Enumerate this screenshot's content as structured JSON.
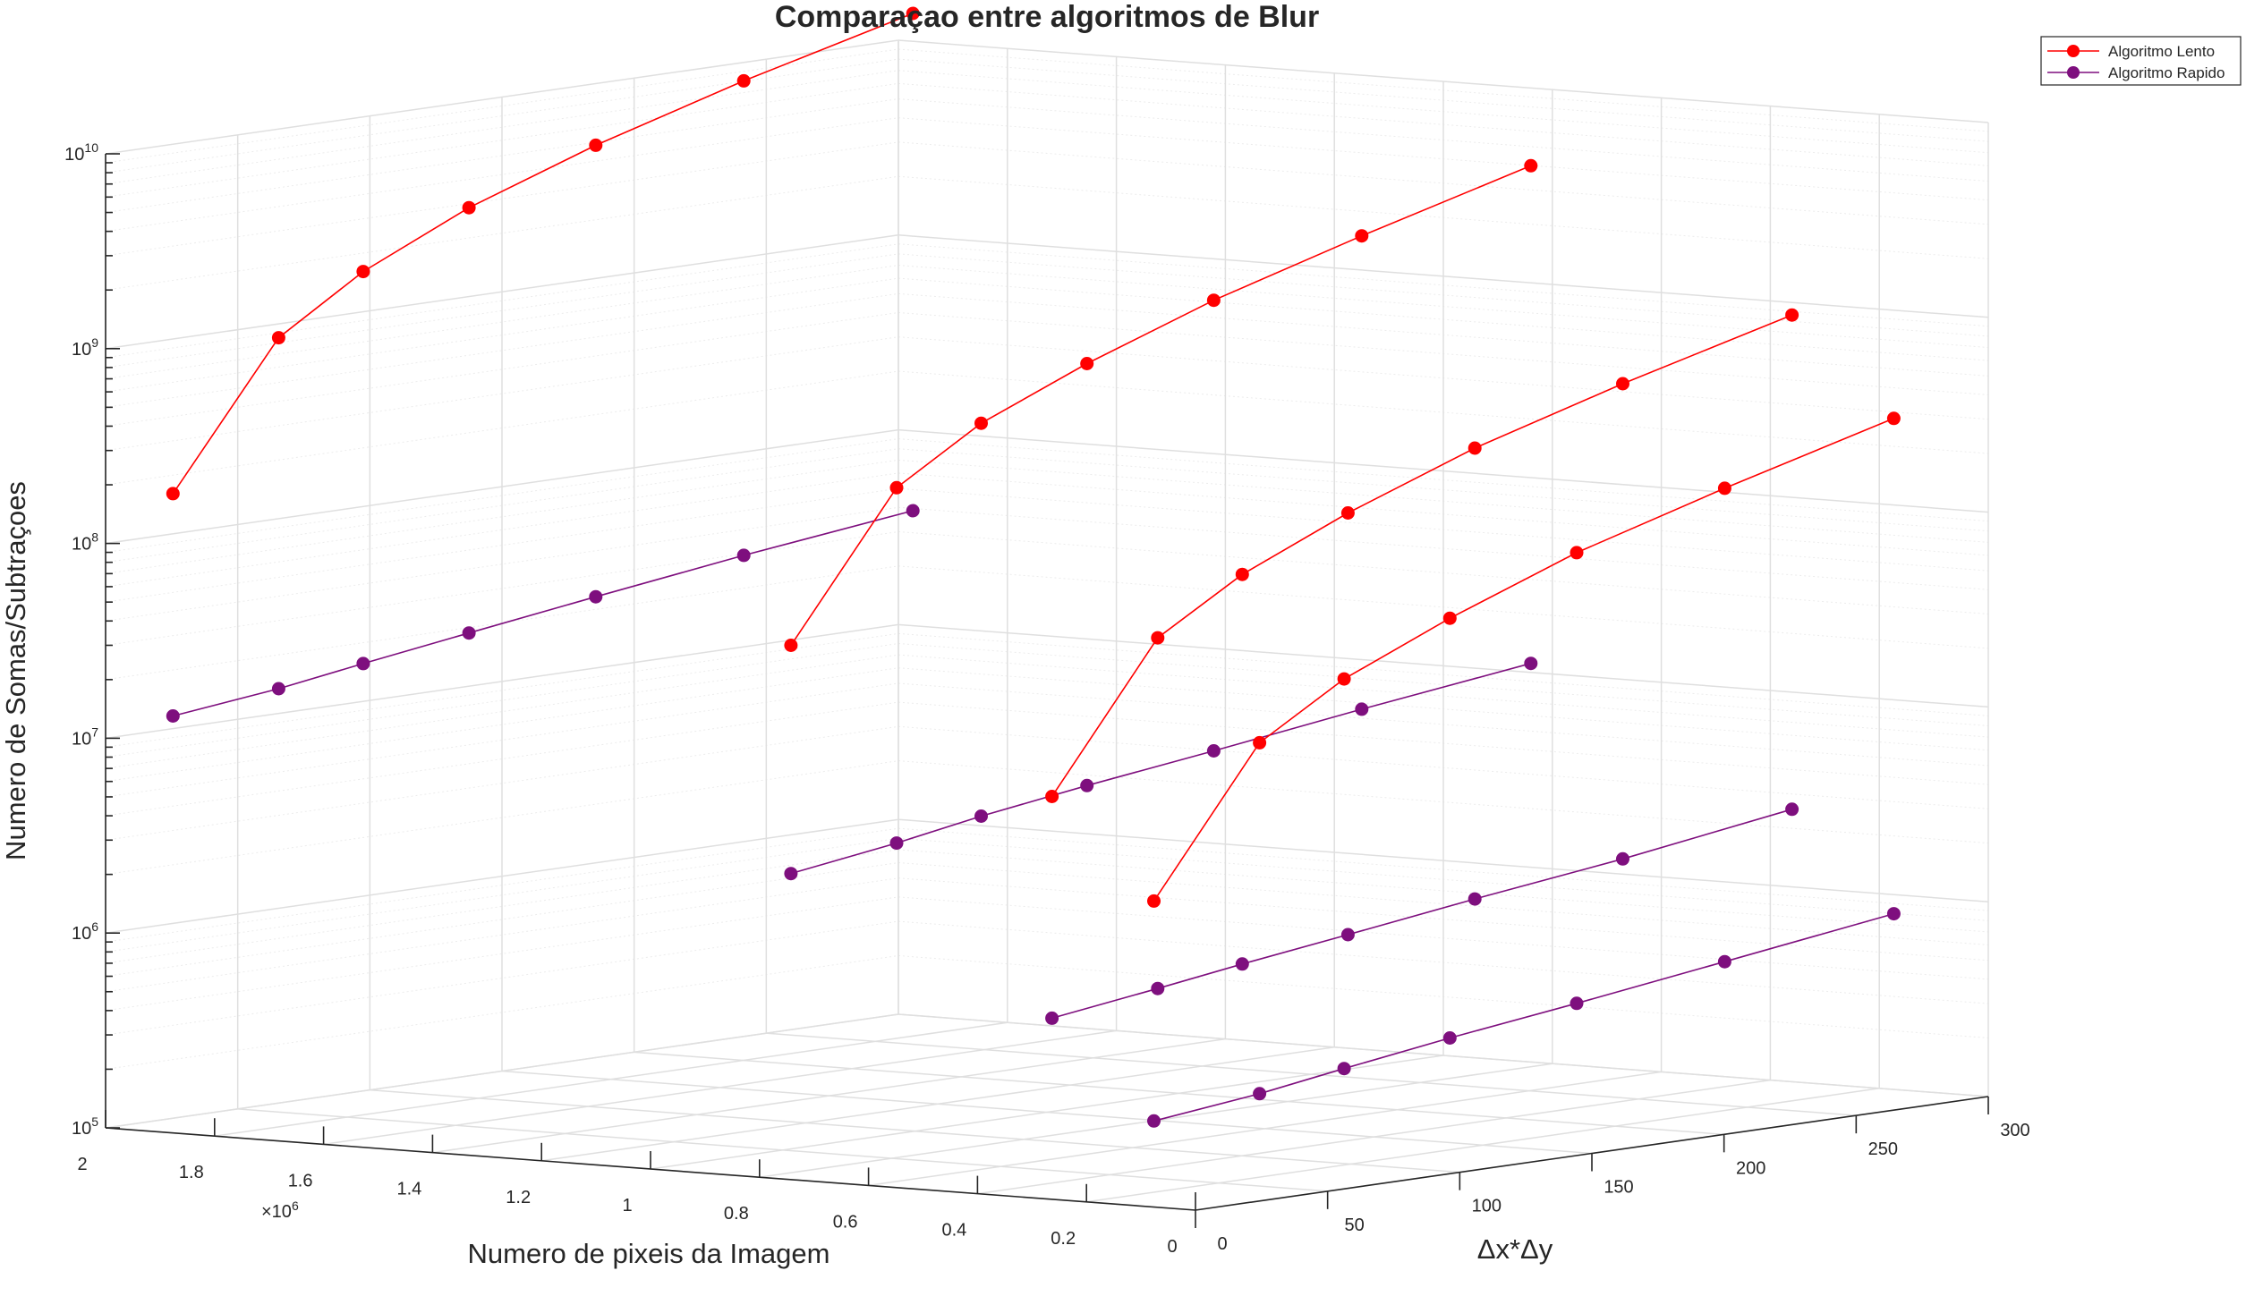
{
  "chart_data": {
    "type": "line",
    "title": "Comparaçao entre algoritmos de Blur",
    "xlabel": "Numero de pixeis da Imagem",
    "ylabel": "Δx*Δy",
    "zlabel": "Numero de Somas/Subtraçoes",
    "x_multiplier": "×10",
    "x_multiplier_exp": "6",
    "xlim": [
      0,
      2000000
    ],
    "ylim": [
      0,
      300
    ],
    "zlim": [
      100000,
      10000000000
    ],
    "z_scale": "log",
    "grid": true,
    "legend_position": "top-right",
    "x_ticks": [
      {
        "value": 0,
        "label": "0"
      },
      {
        "value": 200000,
        "label": "0.2"
      },
      {
        "value": 400000,
        "label": "0.4"
      },
      {
        "value": 600000,
        "label": "0.6"
      },
      {
        "value": 800000,
        "label": "0.8"
      },
      {
        "value": 1000000,
        "label": "1"
      },
      {
        "value": 1200000,
        "label": "1.2"
      },
      {
        "value": 1400000,
        "label": "1.4"
      },
      {
        "value": 1600000,
        "label": "1.6"
      },
      {
        "value": 1800000,
        "label": "1.8"
      },
      {
        "value": 2000000,
        "label": "2"
      }
    ],
    "y_ticks": [
      {
        "value": 0,
        "label": "0"
      },
      {
        "value": 50,
        "label": "50"
      },
      {
        "value": 100,
        "label": "100"
      },
      {
        "value": 150,
        "label": "150"
      },
      {
        "value": 200,
        "label": "200"
      },
      {
        "value": 250,
        "label": "250"
      },
      {
        "value": 300,
        "label": "300"
      }
    ],
    "z_ticks": [
      {
        "value": 100000,
        "base": "10",
        "exp": "5"
      },
      {
        "value": 1000000,
        "base": "10",
        "exp": "6"
      },
      {
        "value": 10000000,
        "base": "10",
        "exp": "7"
      },
      {
        "value": 100000000,
        "base": "10",
        "exp": "8"
      },
      {
        "value": 1000000000,
        "base": "10",
        "exp": "9"
      },
      {
        "value": 10000000000,
        "base": "10",
        "exp": "10"
      }
    ],
    "legend": [
      {
        "label": "Algoritmo Lento",
        "color": "#ff0000"
      },
      {
        "label": "Algoritmo Rapido",
        "color": "#7e0f7e"
      }
    ],
    "delta_values": [
      9,
      49,
      81,
      121,
      169,
      225,
      289
    ],
    "series": [
      {
        "name": "Algoritmo Lento",
        "color": "#ff0000",
        "x": 1920000,
        "points": [
          [
            9,
            180000000
          ],
          [
            49,
            950000000
          ],
          [
            81,
            1800000000
          ],
          [
            121,
            3200000000
          ],
          [
            169,
            5400000000
          ],
          [
            225,
            9000000000
          ],
          [
            289,
            15000000000
          ]
        ]
      },
      {
        "name": "Algoritmo Rapido",
        "color": "#7e0f7e",
        "x": 1920000,
        "points": [
          [
            9,
            13000000
          ],
          [
            49,
            15000000
          ],
          [
            81,
            17500000
          ],
          [
            121,
            21000000
          ],
          [
            169,
            26000000
          ],
          [
            225,
            33000000
          ],
          [
            289,
            42000000
          ]
        ]
      },
      {
        "name": "Algoritmo Lento",
        "color": "#ff0000",
        "x": 786000,
        "points": [
          [
            9,
            52000000
          ],
          [
            49,
            280000000
          ],
          [
            81,
            520000000
          ],
          [
            121,
            880000000
          ],
          [
            169,
            1500000000
          ],
          [
            225,
            2500000000
          ],
          [
            289,
            4300000000
          ]
        ]
      },
      {
        "name": "Algoritmo Rapido",
        "color": "#7e0f7e",
        "x": 786000,
        "points": [
          [
            9,
            3500000
          ],
          [
            49,
            4200000
          ],
          [
            81,
            5000000
          ],
          [
            121,
            6000000
          ],
          [
            169,
            7300000
          ],
          [
            225,
            9300000
          ],
          [
            289,
            12000000
          ]
        ]
      },
      {
        "name": "Algoritmo Lento",
        "color": "#ff0000",
        "x": 307000,
        "points": [
          [
            9,
            11000000
          ],
          [
            49,
            60000000
          ],
          [
            81,
            110000000
          ],
          [
            121,
            190000000
          ],
          [
            169,
            330000000
          ],
          [
            225,
            550000000
          ],
          [
            289,
            930000000
          ]
        ]
      },
      {
        "name": "Algoritmo Rapido",
        "color": "#7e0f7e",
        "x": 307000,
        "points": [
          [
            9,
            800000
          ],
          [
            49,
            950000
          ],
          [
            81,
            1100000
          ],
          [
            121,
            1300000
          ],
          [
            169,
            1600000
          ],
          [
            225,
            2000000
          ],
          [
            289,
            2700000
          ]
        ]
      },
      {
        "name": "Algoritmo Lento",
        "color": "#ff0000",
        "x": 120000,
        "points": [
          [
            9,
            3500000
          ],
          [
            49,
            19000000
          ],
          [
            81,
            35000000
          ],
          [
            121,
            60000000
          ],
          [
            169,
            105000000
          ],
          [
            225,
            175000000
          ],
          [
            289,
            300000000
          ]
        ]
      },
      {
        "name": "Algoritmo Rapido",
        "color": "#7e0f7e",
        "x": 120000,
        "points": [
          [
            9,
            260000
          ],
          [
            49,
            300000
          ],
          [
            81,
            350000
          ],
          [
            121,
            420000
          ],
          [
            169,
            510000
          ],
          [
            225,
            650000
          ],
          [
            289,
            860000
          ]
        ]
      }
    ]
  }
}
